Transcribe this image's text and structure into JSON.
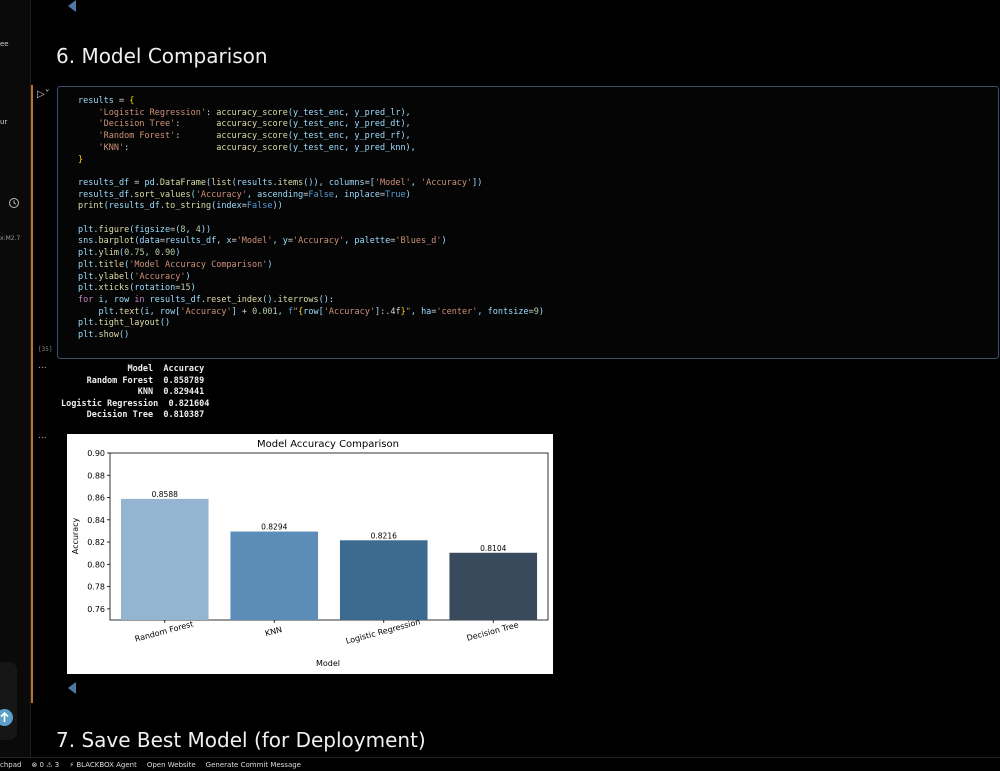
{
  "sidebar": {
    "fragments": [
      "ee",
      "ur",
      "x:M2.7"
    ]
  },
  "notebook": {
    "section_6_title": "6. Model Comparison",
    "section_7_title": "7. Save Best Model (for Deployment)",
    "cell_execution_count": "[35]",
    "output_prompt": "...",
    "output_text": "             Model  Accuracy\n     Random Forest  0.858789\n               KNN  0.829441\nLogistic Regression  0.821604\n     Decision Tree  0.810387"
  },
  "statusbar": {
    "left_fragment": "chpad",
    "problems": "⊗ 0 ⚠ 3",
    "agent": "⚡ BLACKBOX Agent",
    "open_website": "Open Website",
    "commit": "Generate Commit Message"
  },
  "colors": {
    "bar_colors": [
      "#93b5d2",
      "#5b8db8",
      "#3d6a8f",
      "#3a4a5d"
    ],
    "gutter": "#b8722c",
    "cell_border": "#3a506b"
  },
  "chart_data": {
    "type": "bar",
    "title": "Model Accuracy Comparison",
    "xlabel": "Model",
    "ylabel": "Accuracy",
    "categories": [
      "Random Forest",
      "KNN",
      "Logistic Regression",
      "Decision Tree"
    ],
    "values": [
      0.858789,
      0.829441,
      0.821604,
      0.810387
    ],
    "data_labels": [
      "0.8588",
      "0.8294",
      "0.8216",
      "0.8104"
    ],
    "ylim": [
      0.75,
      0.9
    ],
    "yticks": [
      "0.76",
      "0.78",
      "0.80",
      "0.82",
      "0.84",
      "0.86",
      "0.88",
      "0.90"
    ],
    "ytick_values": [
      0.76,
      0.78,
      0.8,
      0.82,
      0.84,
      0.86,
      0.88,
      0.9
    ],
    "grid": false
  }
}
